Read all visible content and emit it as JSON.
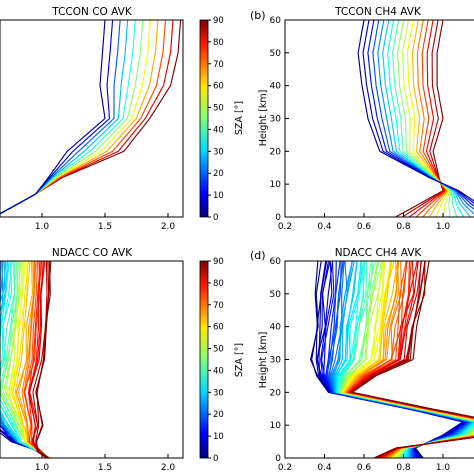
{
  "colorbar": {
    "label": "SZA [°]",
    "ticks": [
      "0",
      "10",
      "20",
      "30",
      "40",
      "50",
      "60",
      "70",
      "80",
      "90"
    ]
  },
  "chart_data": [
    {
      "type": "line",
      "title": "TCCON CO AVK",
      "panel_label": "",
      "xlabel": "",
      "ylabel": "",
      "xlim": [
        0.5,
        2.2
      ],
      "ylim": [
        0,
        60
      ],
      "xticks": [
        "1.0",
        "1.5",
        "2.0"
      ],
      "yticks": [],
      "curve_count": 11,
      "sza_range": [
        0,
        90
      ]
    },
    {
      "type": "line",
      "title": "TCCON CH4 AVK",
      "panel_label": "(b)",
      "xlabel": "",
      "ylabel": "Height [km]",
      "xlim": [
        0.2,
        1.3
      ],
      "ylim": [
        0,
        60
      ],
      "xticks": [
        "0.2",
        "0.4",
        "0.6",
        "0.8",
        "1.0",
        "1.2"
      ],
      "yticks": [
        "0",
        "10",
        "20",
        "30",
        "40",
        "50",
        "60"
      ],
      "curve_count": 17,
      "sza_range": [
        0,
        90
      ]
    },
    {
      "type": "line",
      "title": "NDACC CO AVK",
      "panel_label": "",
      "xlabel": "",
      "ylabel": "",
      "xlim": [
        0.5,
        2.2
      ],
      "ylim": [
        0,
        60
      ],
      "xticks": [
        "1.0",
        "1.5",
        "2.0"
      ],
      "yticks": [],
      "curve_count": 45,
      "sza_range": [
        0,
        90
      ]
    },
    {
      "type": "line",
      "title": "NDACC CH4 AVK",
      "panel_label": "(d)",
      "xlabel": "",
      "ylabel": "Height [km]",
      "xlim": [
        0.2,
        1.3
      ],
      "ylim": [
        0,
        60
      ],
      "xticks": [
        "0.2",
        "0.4",
        "0.6",
        "0.8",
        "1.0",
        "1.2"
      ],
      "yticks": [
        "0",
        "10",
        "20",
        "30",
        "40",
        "50",
        "60"
      ],
      "curve_count": 60,
      "sza_range": [
        0,
        90
      ]
    }
  ]
}
